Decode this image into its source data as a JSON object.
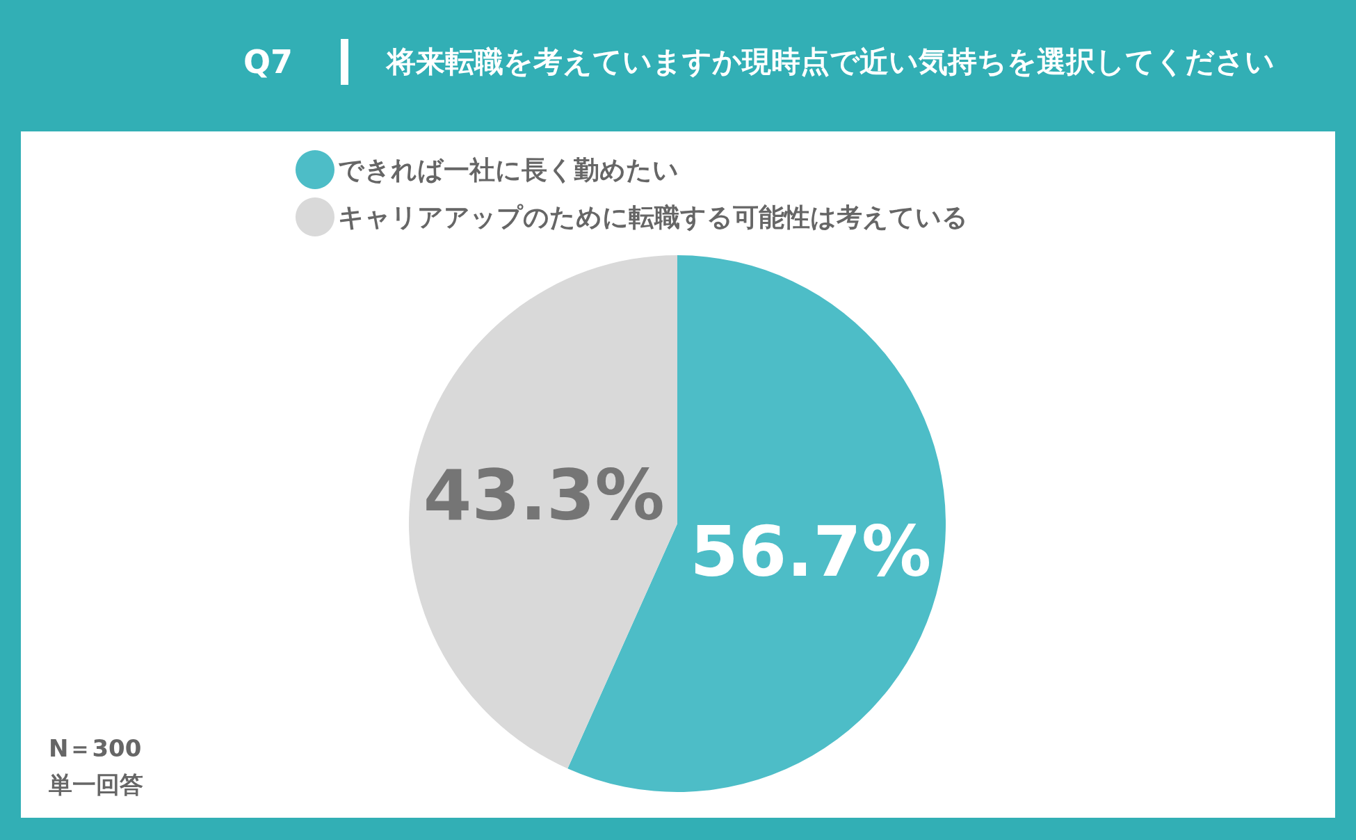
{
  "chart_data": {
    "type": "pie",
    "title": "Q7",
    "subtitle": "将来転職を考えていますか現時点で近い気持ちを選択してください",
    "categories": [
      "できれば一社に長く勤めたい",
      "キャリアアップのために転職する可能性は考えている"
    ],
    "values": [
      56.7,
      43.3
    ],
    "colors": [
      "#4dbdc7",
      "#d9d9d9"
    ],
    "value_labels": [
      "56.7%",
      "43.3%"
    ],
    "legend": "top",
    "annotations": [
      "N＝300",
      "単一回答"
    ]
  }
}
